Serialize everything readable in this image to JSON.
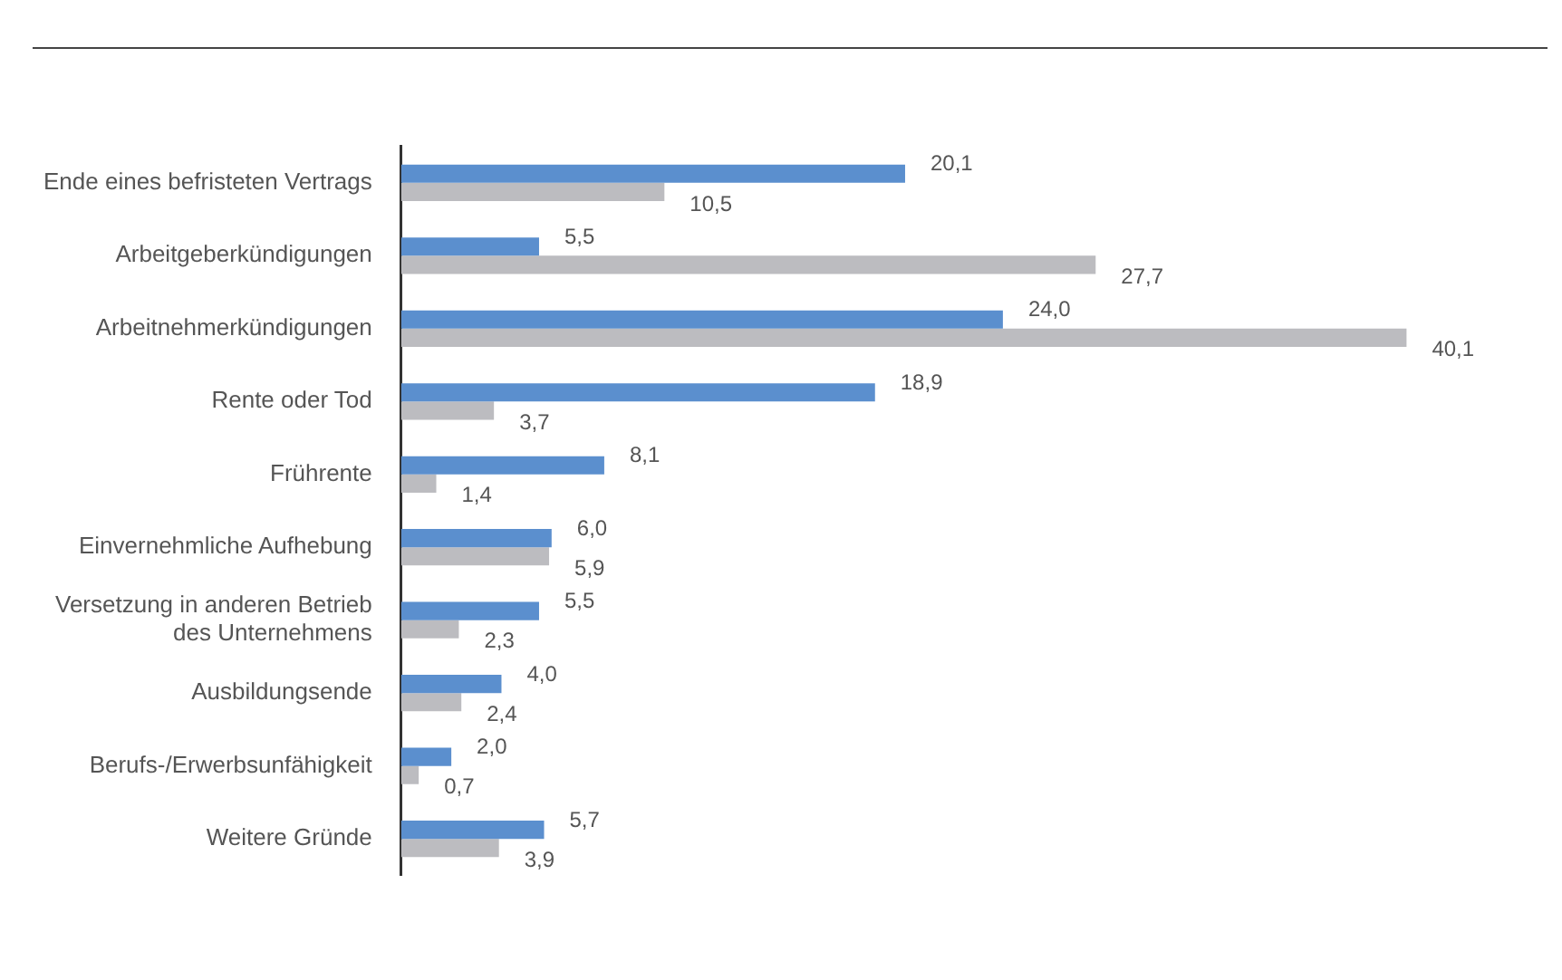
{
  "chart_data": {
    "type": "bar",
    "orientation": "horizontal",
    "categories": [
      "Ende eines befristeten Vertrags",
      "Arbeitgeberkündigungen",
      "Arbeitnehmerkündigungen",
      "Rente oder Tod",
      "Frührente",
      "Einvernehmliche Aufhebung",
      "Versetzung in anderen Betrieb des Unternehmens",
      "Ausbildungsende",
      "Berufs-/Erwerbsunfähigkeit",
      "Weitere Gründe"
    ],
    "series": [
      {
        "color": "#5b8fce",
        "values": [
          20.1,
          5.5,
          24.0,
          18.9,
          8.1,
          6.0,
          5.5,
          4.0,
          2.0,
          5.7
        ],
        "value_labels": [
          "20,1",
          "5,5",
          "24,0",
          "18,9",
          "8,1",
          "6,0",
          "5,5",
          "4,0",
          "2,0",
          "5,7"
        ]
      },
      {
        "color": "#bcbcc0",
        "values": [
          10.5,
          27.7,
          40.1,
          3.7,
          1.4,
          5.9,
          2.3,
          2.4,
          0.7,
          3.9
        ],
        "value_labels": [
          "10,5",
          "27,7",
          "40,1",
          "3,7",
          "1,4",
          "5,9",
          "2,3",
          "2,4",
          "0,7",
          "3,9"
        ]
      }
    ],
    "tick_labels": "y",
    "grid": false,
    "legend": false
  }
}
